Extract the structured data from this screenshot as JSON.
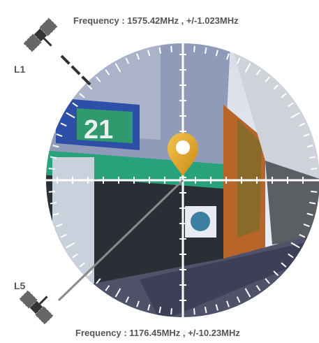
{
  "top_label": {
    "band": "L1",
    "frequency": "Frequency : 1575.42MHz , +/-1.023MHz"
  },
  "bottom_label": {
    "band": "L5",
    "frequency": "Frequency : 1176.45MHz , +/-10.23MHz"
  }
}
